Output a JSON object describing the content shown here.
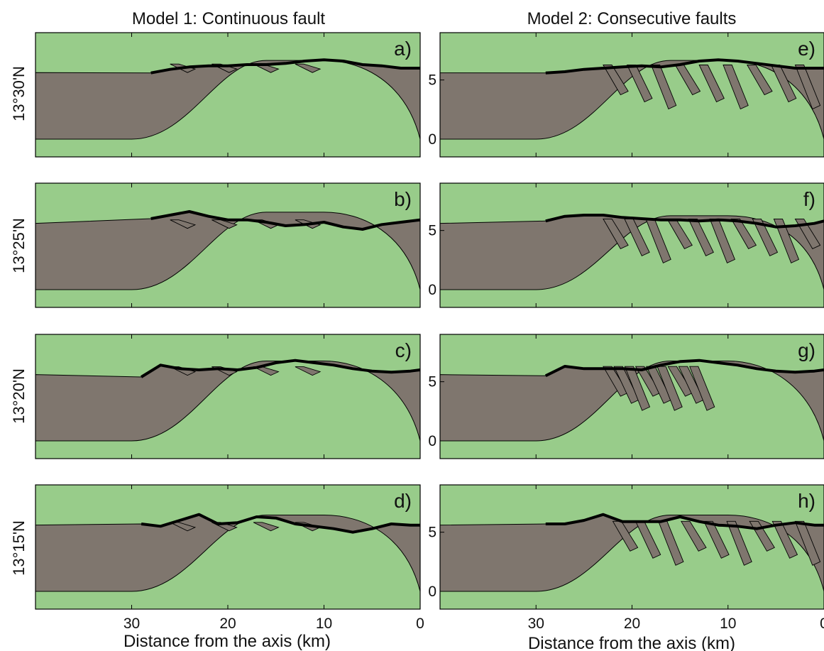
{
  "figure": {
    "column_titles": [
      "Model 1: Continuous fault",
      "Model 2: Consecutive faults"
    ],
    "row_labels": [
      "13°30'N",
      "13°25'N",
      "13°20'N",
      "13°15'N"
    ],
    "xlabel": "Distance from the axis (km)",
    "colors": {
      "crust": "#7f766e",
      "mantle": "#98cc8a",
      "outline": "#000000",
      "topography": "#000000"
    }
  },
  "chart_data": [
    {
      "panel": "a",
      "type": "area",
      "model": "Model 1: Continuous fault",
      "latitude": "13°30'N",
      "xlabel": "",
      "x_reversed": true,
      "xlim": [
        40,
        0
      ],
      "ylim": [
        -1.5,
        9
      ],
      "xticks": [
        30,
        20,
        10,
        0
      ],
      "yticks": [
        0,
        5
      ],
      "bathymetry": {
        "x": [
          28,
          26,
          24,
          22,
          20,
          18,
          16,
          14,
          12,
          10,
          8,
          6,
          4,
          2,
          0
        ],
        "y": [
          5.6,
          5.9,
          6.1,
          6.2,
          6.2,
          6.3,
          6.3,
          6.4,
          6.6,
          6.7,
          6.6,
          6.3,
          6.2,
          6.0,
          6.0
        ]
      }
    },
    {
      "panel": "b",
      "type": "area",
      "model": "Model 1: Continuous fault",
      "latitude": "13°25'N",
      "xlabel": "",
      "x_reversed": true,
      "xlim": [
        40,
        0
      ],
      "ylim": [
        -1.5,
        9
      ],
      "xticks": [
        30,
        20,
        10,
        0
      ],
      "yticks": [
        0,
        5
      ],
      "bathymetry": {
        "x": [
          28,
          26,
          24,
          22,
          20,
          18,
          16,
          14,
          12,
          10,
          8,
          6,
          4,
          2,
          0
        ],
        "y": [
          6.0,
          6.3,
          6.6,
          6.2,
          5.9,
          5.9,
          5.7,
          5.4,
          5.5,
          5.7,
          5.3,
          5.1,
          5.5,
          5.7,
          5.9
        ]
      }
    },
    {
      "panel": "c",
      "type": "area",
      "model": "Model 1: Continuous fault",
      "latitude": "13°20'N",
      "xlabel": "",
      "x_reversed": true,
      "xlim": [
        40,
        0
      ],
      "ylim": [
        -1.5,
        9
      ],
      "xticks": [
        30,
        20,
        10,
        0
      ],
      "yticks": [
        0,
        5
      ],
      "bathymetry": {
        "x": [
          29,
          27,
          25,
          23,
          21,
          19,
          17,
          15,
          13,
          11,
          9,
          7,
          5,
          3,
          1,
          0
        ],
        "y": [
          5.4,
          6.4,
          6.1,
          6.0,
          6.1,
          6.0,
          6.2,
          6.6,
          6.8,
          6.6,
          6.4,
          6.1,
          5.9,
          5.8,
          5.9,
          6.0
        ]
      }
    },
    {
      "panel": "d",
      "type": "area",
      "model": "Model 1: Continuous fault",
      "latitude": "13°15'N",
      "xlabel": "Distance from the axis (km)",
      "x_reversed": true,
      "xlim": [
        40,
        0
      ],
      "ylim": [
        -1.5,
        9
      ],
      "xticks": [
        30,
        20,
        10,
        0
      ],
      "yticks": [
        0,
        5
      ],
      "bathymetry": {
        "x": [
          29,
          27,
          25,
          23,
          21,
          19,
          17,
          15,
          13,
          11,
          9,
          7,
          5,
          3,
          1,
          0
        ],
        "y": [
          5.7,
          5.5,
          6.0,
          6.5,
          5.7,
          5.8,
          6.3,
          6.2,
          5.7,
          5.5,
          5.3,
          5.0,
          5.3,
          5.7,
          5.6,
          5.6
        ]
      }
    },
    {
      "panel": "e",
      "type": "area",
      "model": "Model 2: Consecutive faults",
      "latitude": "13°30'N",
      "xlabel": "",
      "x_reversed": true,
      "xlim": [
        40,
        0
      ],
      "ylim": [
        -1.5,
        9
      ],
      "xticks": [
        30,
        20,
        10,
        0
      ],
      "yticks": [
        0,
        5
      ],
      "bathymetry": {
        "x": [
          29,
          27,
          25,
          23,
          21,
          19,
          17,
          15,
          13,
          11,
          9,
          7,
          5,
          3,
          1,
          0
        ],
        "y": [
          5.6,
          5.7,
          5.9,
          6.0,
          6.1,
          6.2,
          6.1,
          6.3,
          6.6,
          6.7,
          6.6,
          6.4,
          6.2,
          6.0,
          6.0,
          6.0
        ]
      }
    },
    {
      "panel": "f",
      "type": "area",
      "model": "Model 2: Consecutive faults",
      "latitude": "13°25'N",
      "xlabel": "",
      "x_reversed": true,
      "xlim": [
        40,
        0
      ],
      "ylim": [
        -1.5,
        9
      ],
      "xticks": [
        30,
        20,
        10,
        0
      ],
      "yticks": [
        0,
        5
      ],
      "bathymetry": {
        "x": [
          29,
          27,
          25,
          23,
          21,
          19,
          17,
          15,
          13,
          11,
          9,
          7,
          5,
          3,
          1,
          0
        ],
        "y": [
          5.8,
          6.2,
          6.3,
          6.3,
          6.1,
          6.0,
          5.9,
          5.9,
          5.8,
          5.9,
          5.8,
          5.6,
          5.3,
          5.4,
          5.6,
          5.8
        ]
      }
    },
    {
      "panel": "g",
      "type": "area",
      "model": "Model 2: Consecutive faults",
      "latitude": "13°20'N",
      "xlabel": "",
      "x_reversed": true,
      "xlim": [
        40,
        0
      ],
      "ylim": [
        -1.5,
        9
      ],
      "xticks": [
        30,
        20,
        10,
        0
      ],
      "yticks": [
        0,
        5
      ],
      "bathymetry": {
        "x": [
          29,
          27,
          25,
          23,
          21,
          19,
          17,
          15,
          13,
          11,
          9,
          7,
          5,
          3,
          1,
          0
        ],
        "y": [
          5.5,
          6.3,
          6.1,
          6.1,
          6.1,
          6.0,
          6.4,
          6.7,
          6.8,
          6.6,
          6.4,
          6.1,
          5.9,
          5.8,
          5.9,
          6.0
        ]
      }
    },
    {
      "panel": "h",
      "type": "area",
      "model": "Model 2: Consecutive faults",
      "latitude": "13°15'N",
      "xlabel": "Distance from the axis (km)",
      "x_reversed": true,
      "xlim": [
        40,
        0
      ],
      "ylim": [
        -1.5,
        9
      ],
      "xticks": [
        30,
        20,
        10,
        0
      ],
      "yticks": [
        0,
        5
      ],
      "bathymetry": {
        "x": [
          29,
          27,
          25,
          23,
          21,
          19,
          17,
          15,
          13,
          11,
          9,
          7,
          5,
          3,
          1,
          0
        ],
        "y": [
          5.7,
          5.7,
          6.0,
          6.5,
          5.9,
          5.9,
          5.9,
          6.3,
          5.9,
          5.6,
          5.5,
          5.3,
          5.6,
          5.8,
          5.6,
          5.6
        ]
      }
    }
  ]
}
